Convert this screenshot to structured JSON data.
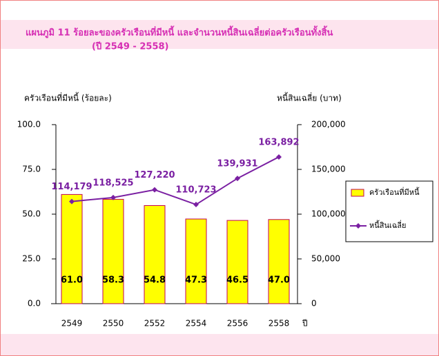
{
  "chart_data": {
    "type": "bar",
    "title": "แผนภูมิ 11  ร้อยละของครัวเรือนที่มีหนี้  และจำนวนหนี้สินเฉลี่ยต่อครัวเรือนทั้งสิ้น",
    "subtitle": "(ปี 2549 - 2558)",
    "y_label": "ครัวเรือนที่มีหนี้ (ร้อยละ)",
    "y2_label": "หนี้สินเฉลี่ย (บาท)",
    "x_label": "ปี",
    "categories": [
      "2549",
      "2550",
      "2552",
      "2554",
      "2556",
      "2558"
    ],
    "series": [
      {
        "name": "ครัวเรือนที่มีหนี้",
        "type": "bar",
        "color": "#ffff00",
        "axis": "y",
        "values": [
          61.0,
          58.3,
          54.8,
          47.3,
          46.5,
          47.0
        ],
        "value_labels": [
          "61.0",
          "58.3",
          "54.8",
          "47.3",
          "46.5",
          "47.0"
        ]
      },
      {
        "name": "หนี้สินเฉลี่ย",
        "type": "line",
        "color": "#7a1fa2",
        "axis": "y2",
        "values": [
          114179,
          118525,
          127220,
          110723,
          139931,
          163892
        ],
        "value_labels": [
          "114,179",
          "118,525",
          "127,220",
          "110,723",
          "139,931",
          "163,892"
        ]
      }
    ],
    "ylim": [
      0,
      100
    ],
    "yticks": [
      {
        "value": 0,
        "label": "0.0"
      },
      {
        "value": 25,
        "label": "25.0"
      },
      {
        "value": 50,
        "label": "50.0"
      },
      {
        "value": 75,
        "label": "75.0"
      },
      {
        "value": 100,
        "label": "100.0"
      }
    ],
    "y2lim": [
      0,
      200000
    ],
    "y2ticks": [
      0,
      {
        "value": 50000,
        "label": "50,000"
      },
      {
        "value": 100000,
        "label": "100,000"
      },
      {
        "value": 150000,
        "label": "150,000"
      },
      {
        "value": 200000,
        "label": "200,000"
      }
    ],
    "legend": "right"
  }
}
